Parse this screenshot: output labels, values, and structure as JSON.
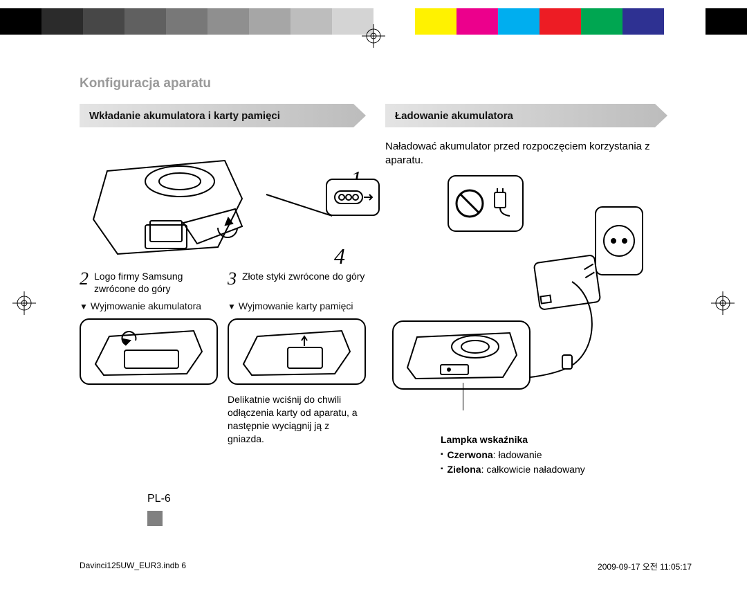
{
  "colorbar": [
    "#000000",
    "#2b2b2b",
    "#474747",
    "#606060",
    "#787878",
    "#8f8f8f",
    "#a6a6a6",
    "#bdbdbd",
    "#d4d4d4",
    "#ffffff",
    "#fff200",
    "#ec008c",
    "#00aeef",
    "#ed1c24",
    "#00a651",
    "#2e3192",
    "#ffffff",
    "#000000"
  ],
  "title": "Konfiguracja aparatu",
  "left": {
    "heading": "Wkładanie akumulatora i karty pamięci",
    "step2_num": "2",
    "step2_text": "Logo firmy Samsung zwrócone do góry",
    "step3_num": "3",
    "step3_text": "Złote styki zwrócone do góry",
    "num1": "1",
    "num4": "4",
    "remove_batt": "Wyjmowanie akumulatora",
    "remove_card": "Wyjmowanie karty pamięci",
    "card_note": "Delikatnie wciśnij do chwili odłączenia karty od aparatu, a następnie wyciągnij ją z gniazda."
  },
  "right": {
    "heading": "Ładowanie akumulatora",
    "intro": "Naładować akumulator przed rozpoczęciem korzystania z aparatu.",
    "indicator_heading": "Lampka wskaźnika",
    "red_label": "Czerwona",
    "red_text": ": ładowanie",
    "green_label": "Zielona",
    "green_text": ": całkowicie naładowany"
  },
  "page_number": "PL-6",
  "footer_left": "Davinci125UW_EUR3.indb   6",
  "footer_right": "2009-09-17   오전 11:05:17"
}
